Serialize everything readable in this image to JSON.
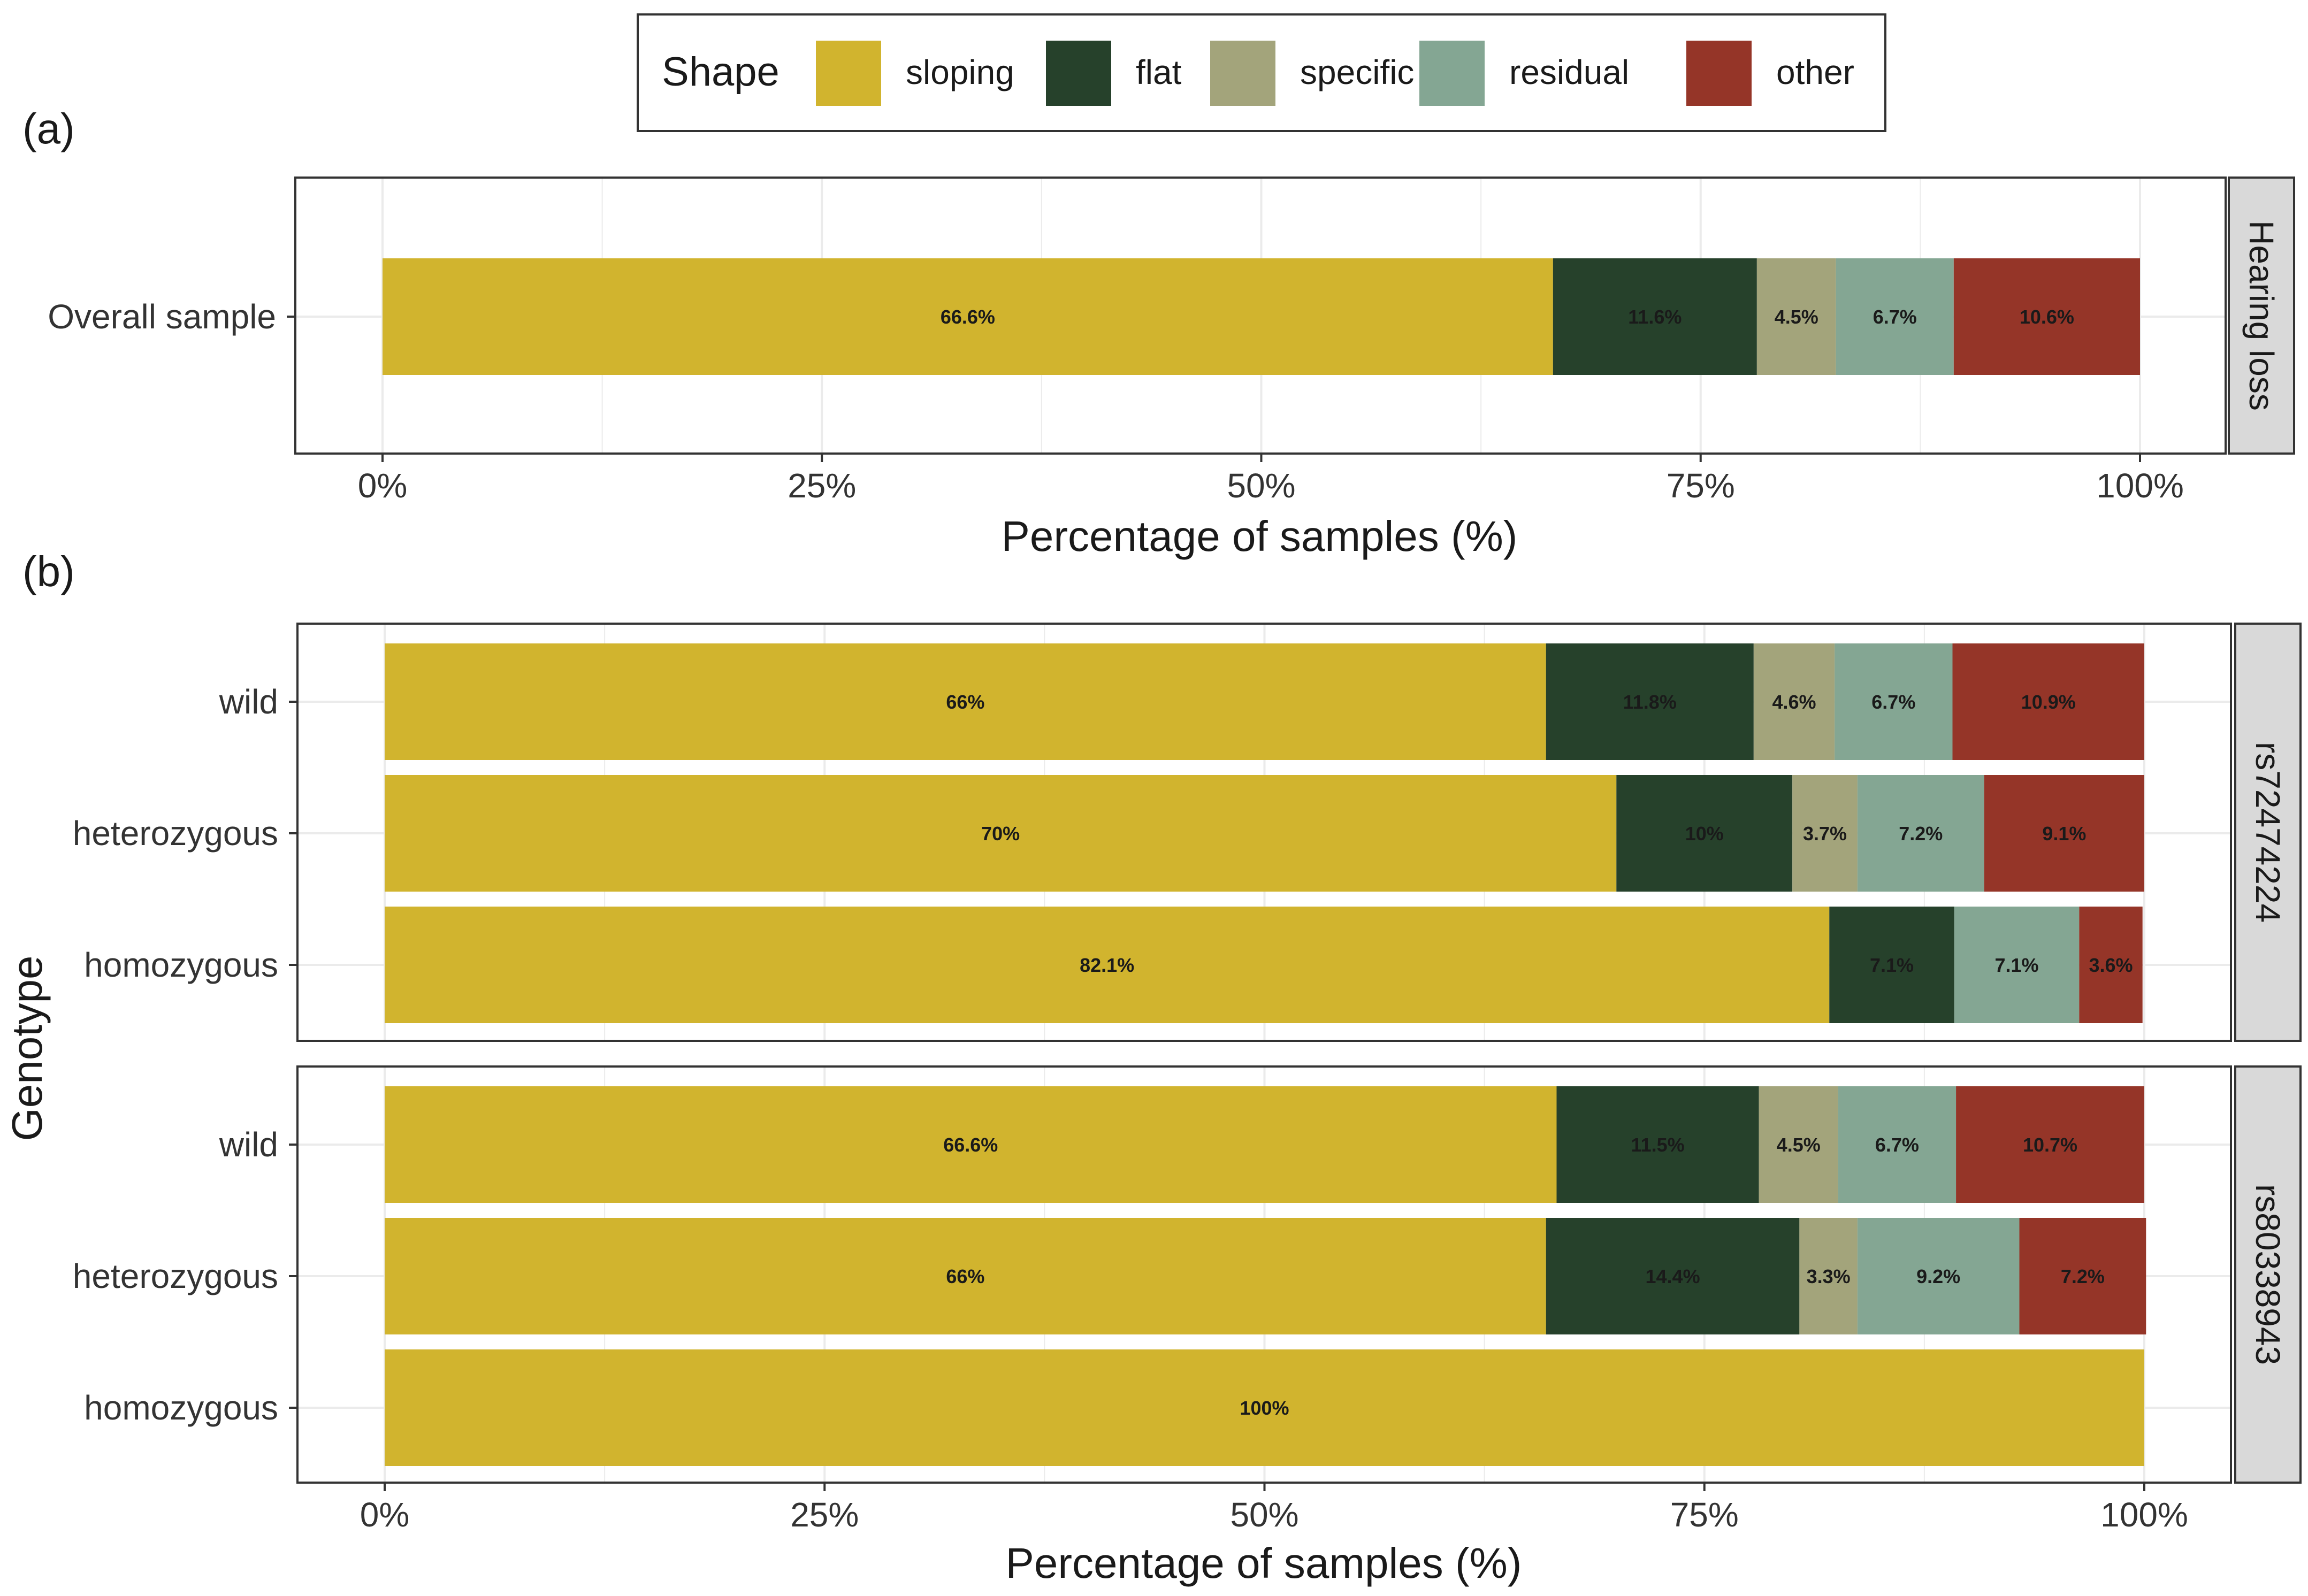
{
  "legend": {
    "title": "Shape",
    "items": [
      {
        "label": "sloping",
        "color": "#D1B42E"
      },
      {
        "label": "flat",
        "color": "#26412B"
      },
      {
        "label": "specific",
        "color": "#A3A47B"
      },
      {
        "label": "residual",
        "color": "#84A693"
      },
      {
        "label": "other",
        "color": "#953528"
      }
    ]
  },
  "y_axis_label": "Genotype",
  "chart_data": [
    {
      "type": "bar",
      "orientation": "horizontal",
      "stacked": true,
      "tag": "(a)",
      "xlabel": "Percentage of samples (%)",
      "xlim": [
        0,
        100
      ],
      "xticks": [
        "0%",
        "25%",
        "50%",
        "75%",
        "100%"
      ],
      "grid": true,
      "panels": [
        {
          "strip": "Hearing loss",
          "categories": [
            "Overall sample"
          ],
          "series": [
            {
              "name": "sloping",
              "values": [
                66.6
              ],
              "labels": [
                "66.6%"
              ]
            },
            {
              "name": "flat",
              "values": [
                11.6
              ],
              "labels": [
                "11.6%"
              ]
            },
            {
              "name": "specific",
              "values": [
                4.5
              ],
              "labels": [
                "4.5%"
              ]
            },
            {
              "name": "residual",
              "values": [
                6.7
              ],
              "labels": [
                "6.7%"
              ]
            },
            {
              "name": "other",
              "values": [
                10.6
              ],
              "labels": [
                "10.6%"
              ]
            }
          ]
        }
      ]
    },
    {
      "type": "bar",
      "orientation": "horizontal",
      "stacked": true,
      "tag": "(b)",
      "xlabel": "Percentage of samples (%)",
      "ylabel": "Genotype",
      "xlim": [
        0,
        100
      ],
      "xticks": [
        "0%",
        "25%",
        "50%",
        "75%",
        "100%"
      ],
      "grid": true,
      "panels": [
        {
          "strip": "rs72474224",
          "categories": [
            "wild",
            "heterozygous",
            "homozygous"
          ],
          "series": [
            {
              "name": "sloping",
              "values": [
                66,
                70,
                82.1
              ],
              "labels": [
                "66%",
                "70%",
                "82.1%"
              ]
            },
            {
              "name": "flat",
              "values": [
                11.8,
                10,
                7.1
              ],
              "labels": [
                "11.8%",
                "10%",
                "7.1%"
              ]
            },
            {
              "name": "specific",
              "values": [
                4.6,
                3.7,
                0
              ],
              "labels": [
                "4.6%",
                "3.7%",
                ""
              ]
            },
            {
              "name": "residual",
              "values": [
                6.7,
                7.2,
                7.1
              ],
              "labels": [
                "6.7%",
                "7.2%",
                "7.1%"
              ]
            },
            {
              "name": "other",
              "values": [
                10.9,
                9.1,
                3.6
              ],
              "labels": [
                "10.9%",
                "9.1%",
                "3.6%"
              ]
            }
          ]
        },
        {
          "strip": "rs80338943",
          "categories": [
            "wild",
            "heterozygous",
            "homozygous"
          ],
          "series": [
            {
              "name": "sloping",
              "values": [
                66.6,
                66,
                100
              ],
              "labels": [
                "66.6%",
                "66%",
                "100%"
              ]
            },
            {
              "name": "flat",
              "values": [
                11.5,
                14.4,
                0
              ],
              "labels": [
                "11.5%",
                "14.4%",
                ""
              ]
            },
            {
              "name": "specific",
              "values": [
                4.5,
                3.3,
                0
              ],
              "labels": [
                "4.5%",
                "3.3%",
                ""
              ]
            },
            {
              "name": "residual",
              "values": [
                6.7,
                9.2,
                0
              ],
              "labels": [
                "6.7%",
                "9.2%",
                ""
              ]
            },
            {
              "name": "other",
              "values": [
                10.7,
                7.2,
                0
              ],
              "labels": [
                "10.7%",
                "7.2%",
                ""
              ]
            }
          ]
        }
      ]
    }
  ]
}
